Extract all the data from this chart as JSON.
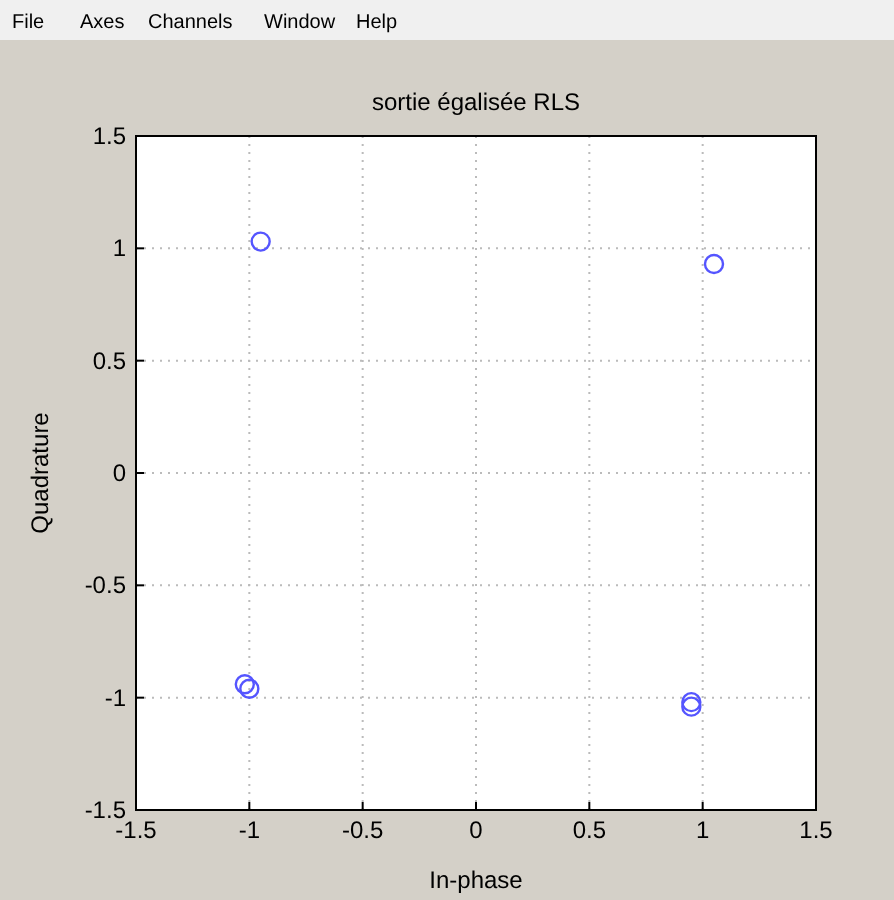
{
  "chart_data": {
    "type": "scatter",
    "title": "sortie égalisée RLS",
    "xlabel": "In-phase",
    "ylabel": "Quadrature",
    "annotations": [
      "File",
      "Axes",
      "Channels",
      "Window",
      "Help"
    ],
    "series": [
      {
        "color": "#5555ff",
        "x": [
          -0.95,
          1.05,
          -1.02,
          -1.0,
          0.95,
          0.95
        ],
        "values": [
          1.03,
          0.93,
          -0.94,
          -0.96,
          -1.02,
          -1.04
        ]
      }
    ],
    "xlim": [
      -1.5,
      1.5
    ],
    "ylim": [
      -1.5,
      1.5
    ],
    "xticks": [
      -1.5,
      -1,
      -0.5,
      0,
      0.5,
      1,
      1.5
    ],
    "yticks": [
      -1.5,
      -1,
      -0.5,
      0,
      0.5,
      1,
      1.5
    ],
    "grid": true,
    "marker": "circle"
  }
}
